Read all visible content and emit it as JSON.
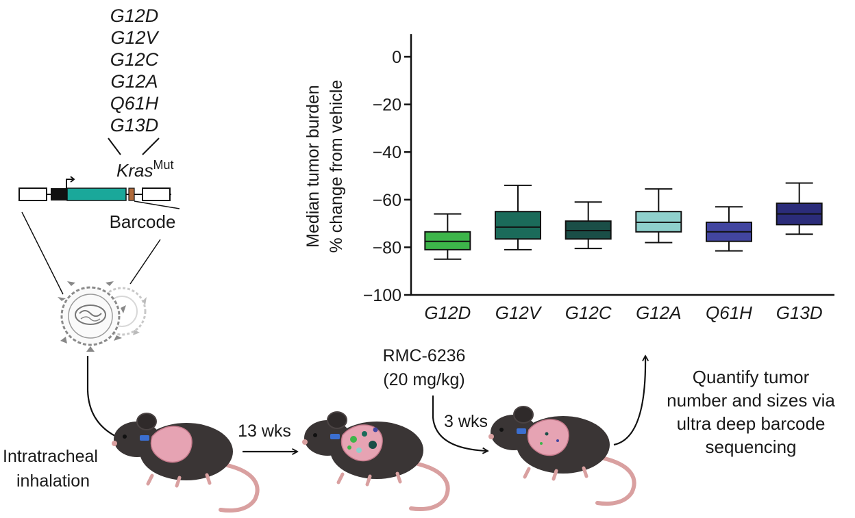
{
  "colors": {
    "G12D": "#3db54a",
    "G12V": "#1b6b5a",
    "G12C": "#1a4e47",
    "G12A": "#8fd0cc",
    "Q61H": "#4245a0",
    "G13D": "#2b2c7a",
    "construct_teal": "#1aa89a",
    "mouse": "#3a3535",
    "lung": "#e6a3b3",
    "tail": "#d9a0a0"
  },
  "mutation_list": [
    "G12D",
    "G12V",
    "G12C",
    "G12A",
    "Q61H",
    "G13D"
  ],
  "construct": {
    "gene": "Kras",
    "superscript": "Mut",
    "barcode_label": "Barcode"
  },
  "steps": {
    "inhalation_line1": "Intratracheal",
    "inhalation_line2": "inhalation",
    "interval1": "13 wks",
    "drug_line1": "RMC-6236",
    "drug_line2": "(20 mg/kg)",
    "interval2": "3 wks",
    "quantify_line1": "Quantify tumor",
    "quantify_line2": "number and sizes via",
    "quantify_line3": "ultra deep barcode",
    "quantify_line4": "sequencing"
  },
  "chart_data": {
    "type": "box",
    "ylabel_line1": "Median tumor burden",
    "ylabel_line2": "% change from vehicle",
    "ylim": [
      -100,
      0
    ],
    "yticks": [
      0,
      -20,
      -40,
      -60,
      -80,
      -100
    ],
    "categories": [
      "G12D",
      "G12V",
      "G12C",
      "G12A",
      "Q61H",
      "G13D"
    ],
    "boxes": [
      {
        "min": -85,
        "q1": -81,
        "median": -77.5,
        "q3": -73.5,
        "max": -66
      },
      {
        "min": -81,
        "q1": -76.5,
        "median": -71.5,
        "q3": -65,
        "max": -54
      },
      {
        "min": -80.5,
        "q1": -76.5,
        "median": -73,
        "q3": -69,
        "max": -61
      },
      {
        "min": -78,
        "q1": -73.5,
        "median": -69.5,
        "q3": -65,
        "max": -55.5
      },
      {
        "min": -81.5,
        "q1": -77.5,
        "median": -73.5,
        "q3": -69.5,
        "max": -63
      },
      {
        "min": -74.5,
        "q1": -70.5,
        "median": -66,
        "q3": -61.5,
        "max": -53
      }
    ]
  }
}
